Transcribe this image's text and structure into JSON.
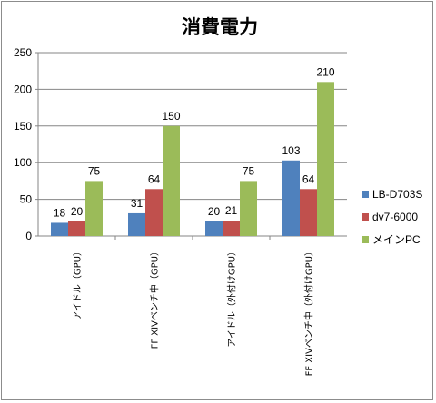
{
  "chart_data": {
    "type": "bar",
    "title": "消費電力",
    "categories": [
      "アイドル（GPU）",
      "FF XIVベンチ中（GPU）",
      "アイドル（外付けGPU）",
      "FF XIVベンチ中（外付けGPU）"
    ],
    "series": [
      {
        "name": "LB-D703S",
        "color": "#4f81bd",
        "values": [
          18,
          31,
          20,
          103
        ]
      },
      {
        "name": "dv7-6000",
        "color": "#c0504d",
        "values": [
          20,
          64,
          21,
          64
        ]
      },
      {
        "name": "メインPC",
        "color": "#9bbb59",
        "values": [
          75,
          150,
          75,
          210
        ]
      }
    ],
    "ylim": [
      0,
      250
    ],
    "yticks": [
      0,
      50,
      100,
      150,
      200,
      250
    ],
    "grid": true,
    "legend": "right",
    "data_labels": true
  }
}
